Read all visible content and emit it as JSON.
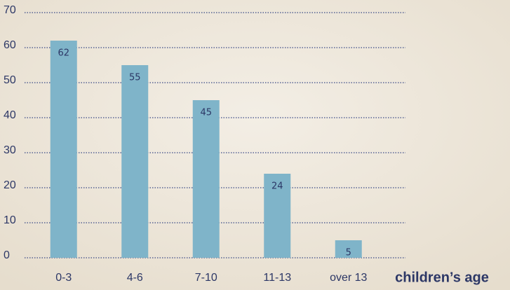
{
  "chart_data": {
    "type": "bar",
    "categories": [
      "0-3",
      "4-6",
      "7-10",
      "11-13",
      "over 13"
    ],
    "values": [
      62,
      55,
      45,
      24,
      5
    ],
    "color": "#7fb4c9",
    "x_label": "children’s age",
    "ylim": [
      0,
      70
    ],
    "yticks": [
      0,
      10,
      20,
      30,
      40,
      50,
      60,
      70
    ],
    "grid": true
  }
}
